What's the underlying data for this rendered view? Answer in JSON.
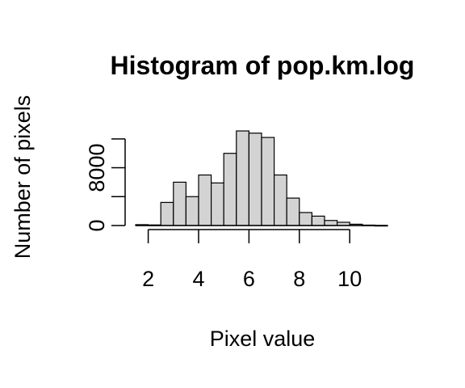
{
  "chart_data": {
    "type": "bar",
    "title": "Histogram of pop.km.log",
    "xlabel": "Pixel value",
    "ylabel": "Number of pixels",
    "bar_color": "#d3d3d3",
    "edge_color": "#000000",
    "bin_edges": [
      1.5,
      2.0,
      2.5,
      3.0,
      3.5,
      4.0,
      4.5,
      5.0,
      5.5,
      6.0,
      6.5,
      7.0,
      7.5,
      8.0,
      8.5,
      9.0,
      9.5,
      10.0,
      10.5,
      11.0,
      11.5
    ],
    "values": [
      120,
      80,
      3200,
      6000,
      4000,
      7000,
      5900,
      10000,
      13100,
      12800,
      12200,
      7000,
      3800,
      1800,
      1300,
      700,
      450,
      180,
      60,
      20
    ],
    "x_ticks": [
      2,
      4,
      6,
      8,
      10
    ],
    "x_tick_labels": [
      "2",
      "4",
      "6",
      "8",
      "10"
    ],
    "y_ticks": [
      0,
      4000,
      8000,
      12000
    ],
    "y_tick_labels": [
      "0",
      "",
      "8000",
      ""
    ],
    "xlim": [
      1.5,
      11.5
    ],
    "ylim": [
      0,
      13100
    ],
    "grid": false,
    "legend": false
  }
}
